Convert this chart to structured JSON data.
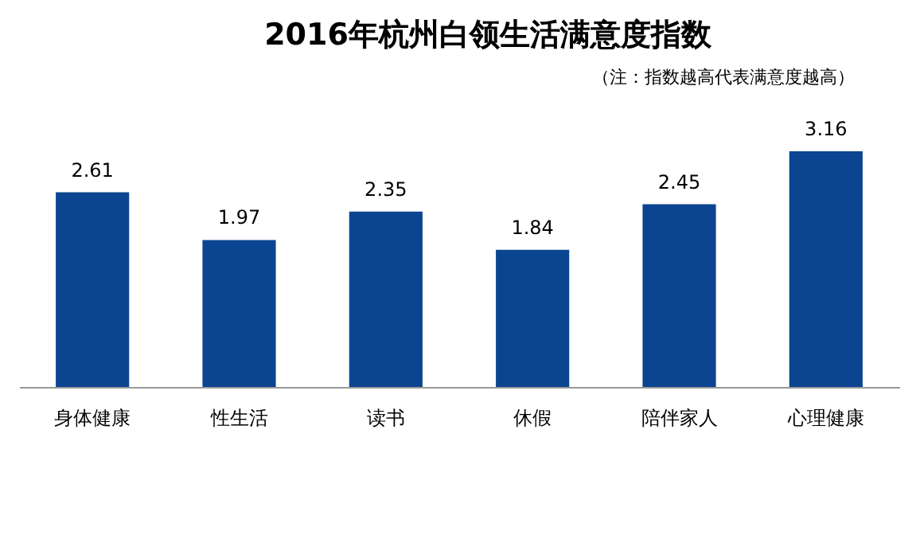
{
  "chart_data": {
    "type": "bar",
    "title": "2016年杭州白领生活满意度指数",
    "subtitle": "（注：指数越高代表满意度越高）",
    "categories": [
      "身体健康",
      "性生活",
      "读书",
      "休假",
      "陪伴家人",
      "心理健康"
    ],
    "values": [
      2.61,
      1.97,
      2.35,
      1.84,
      2.45,
      3.16
    ],
    "color": "#0b4592",
    "data_labels": true
  }
}
